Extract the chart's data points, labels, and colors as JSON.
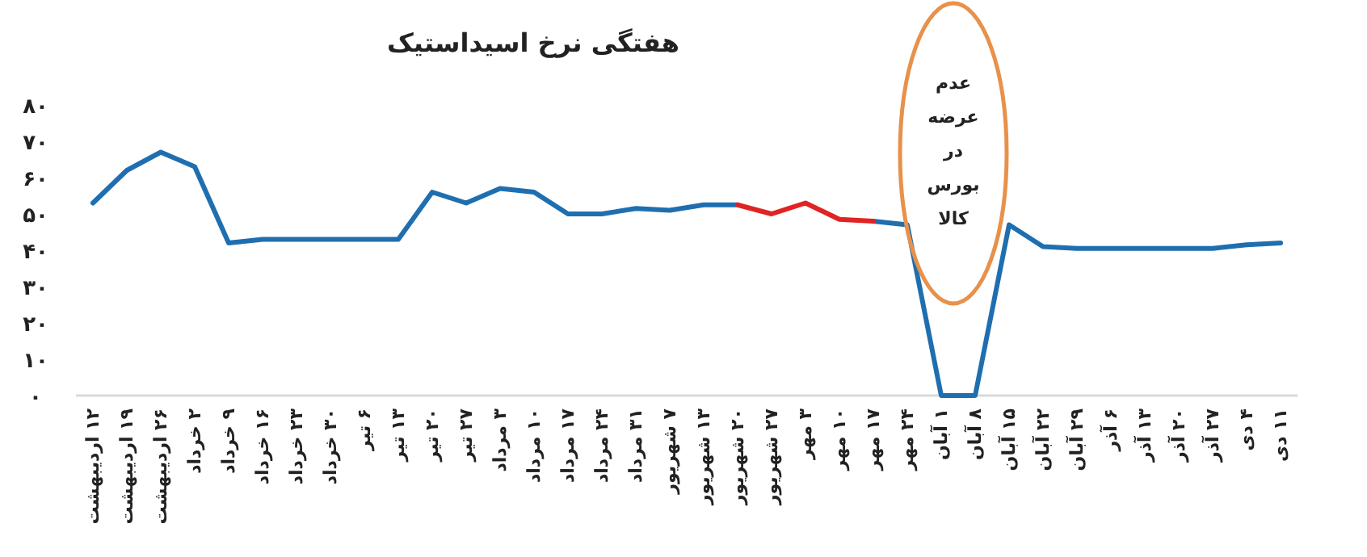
{
  "chart_data": {
    "type": "line",
    "title": "هفتگی نرخ اسیداستیک",
    "categories": [
      "۱۲ اردیبهشت",
      "۱۹ اردیبهشت",
      "۲۶ اردیبهشت",
      "۲ خرداد",
      "۹ خرداد",
      "۱۶ خرداد",
      "۲۳ خرداد",
      "۳۰ خرداد",
      "۶ تیر",
      "۱۳ تیر",
      "۲۰ تیر",
      "۲۷ تیر",
      "۳ مرداد",
      "۱۰ مرداد",
      "۱۷ مرداد",
      "۲۴ مرداد",
      "۳۱ مرداد",
      "۷ شهریور",
      "۱۳ شهریور",
      "۲۰ شهریور",
      "۲۷ شهریور",
      "۳ مهر",
      "۱۰ مهر",
      "۱۷ مهر",
      "۲۴ مهر",
      "۱ آبان",
      "۸ آبان",
      "۱۵ آبان",
      "۲۲ آبان",
      "۲۹ آبان",
      "۶ آذر",
      "۱۳ آذر",
      "۲۰ آذر",
      "۲۷ آذر",
      "۴ دی",
      "۱۱ دی"
    ],
    "series": [
      {
        "color": "#1f6fb0",
        "values": [
          53,
          62,
          67,
          63,
          42,
          43,
          43,
          43,
          43,
          43,
          56,
          53,
          57,
          56,
          50,
          50,
          51.5,
          51,
          52.5,
          52.5,
          null,
          null,
          null,
          48,
          47,
          0,
          0,
          47,
          41,
          40.5,
          40.5,
          40.5,
          40.5,
          40.5,
          41.5,
          42
        ]
      },
      {
        "color": "#e02424",
        "values": [
          null,
          null,
          null,
          null,
          null,
          null,
          null,
          null,
          null,
          null,
          null,
          null,
          null,
          null,
          null,
          null,
          null,
          null,
          null,
          52.5,
          50,
          53,
          48.5,
          48,
          null,
          null,
          null,
          null,
          null,
          null,
          null,
          null,
          null,
          null,
          null,
          null
        ]
      }
    ],
    "ylim": [
      0,
      80
    ],
    "yticks": [
      {
        "value": 0,
        "label": "۰"
      },
      {
        "value": 10,
        "label": "۱۰"
      },
      {
        "value": 20,
        "label": "۲۰"
      },
      {
        "value": 30,
        "label": "۳۰"
      },
      {
        "value": 40,
        "label": "۴۰"
      },
      {
        "value": 50,
        "label": "۵۰"
      },
      {
        "value": 60,
        "label": "۶۰"
      },
      {
        "value": 70,
        "label": "۷۰"
      },
      {
        "value": 80,
        "label": "۸۰"
      }
    ],
    "grid": false,
    "annotations": [
      "عدم عرضه در بورس کالا"
    ]
  }
}
